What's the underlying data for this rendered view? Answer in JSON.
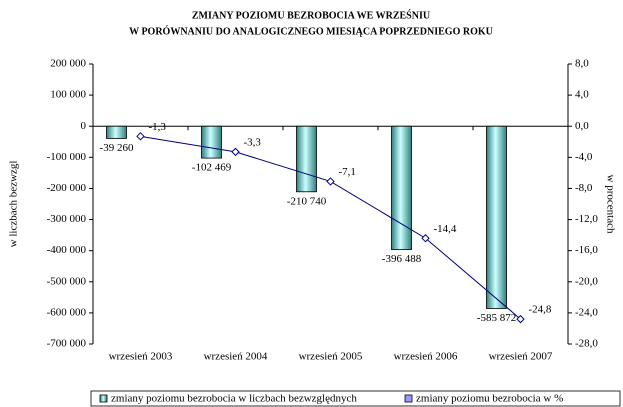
{
  "chart_data": {
    "type": "bar_line",
    "title": [
      "ZMIANY POZIOMU BEZROBOCIA WE WRZEŚNIU",
      "W PORÓWNANIU DO ANALOGICZNEGO MIESIĄCA POPRZEDNIEGO ROKU"
    ],
    "ylabel": "w liczbach bezwzgl",
    "y2label": "w procentach",
    "categories": [
      "wrzesień 2003",
      "wrzesień 2004",
      "wrzesień 2005",
      "wrzesień 2006",
      "wrzesień 2007"
    ],
    "series": [
      {
        "name": "zmiany poziomu bezrobocia w liczbach bezwzględnych",
        "type": "bar",
        "color": "#99dede",
        "values": [
          -39260,
          -102469,
          -210740,
          -396488,
          -585872
        ],
        "value_labels": [
          "-39 260",
          "-102 469",
          "-210 740",
          "-396 488",
          "-585 872"
        ]
      },
      {
        "name": "zmiany poziomu bezrobocia w %",
        "type": "line",
        "axis": "y2",
        "color": "#000080",
        "values": [
          -1.3,
          -3.3,
          -7.1,
          -14.4,
          -24.8
        ],
        "value_labels": [
          "-1,3",
          "-3,3",
          "-7,1",
          "-14,4",
          "-24,8"
        ]
      }
    ],
    "ylim": [
      -700000,
      200000
    ],
    "yticks": [
      {
        "value": 200000,
        "label": "200 000"
      },
      {
        "value": 100000,
        "label": "100 000"
      },
      0,
      {
        "value": -100000,
        "label": "-100 000"
      },
      {
        "value": -200000,
        "label": "-200 000"
      },
      {
        "value": -300000,
        "label": "-300 000"
      },
      {
        "value": -400000,
        "label": "-400 000"
      },
      {
        "value": -500000,
        "label": "-500 000"
      },
      {
        "value": -600000,
        "label": "-600 000"
      },
      {
        "value": -700000,
        "label": "-700 000"
      }
    ],
    "y2lim": [
      -28,
      8
    ],
    "y2ticks": [
      {
        "value": 8,
        "label": "8,0"
      },
      {
        "value": 4,
        "label": "4,0"
      },
      {
        "value": 0,
        "label": "0,0"
      },
      {
        "value": -4,
        "label": "-4,0"
      },
      {
        "value": -8,
        "label": "-8,0"
      },
      {
        "value": -12,
        "label": "-12,0"
      },
      {
        "value": -16,
        "label": "-16,0"
      },
      {
        "value": -20,
        "label": "-20,0"
      },
      {
        "value": -24,
        "label": "-24,0"
      },
      {
        "value": -28,
        "label": "-28,0"
      }
    ],
    "legend": "bottom"
  }
}
